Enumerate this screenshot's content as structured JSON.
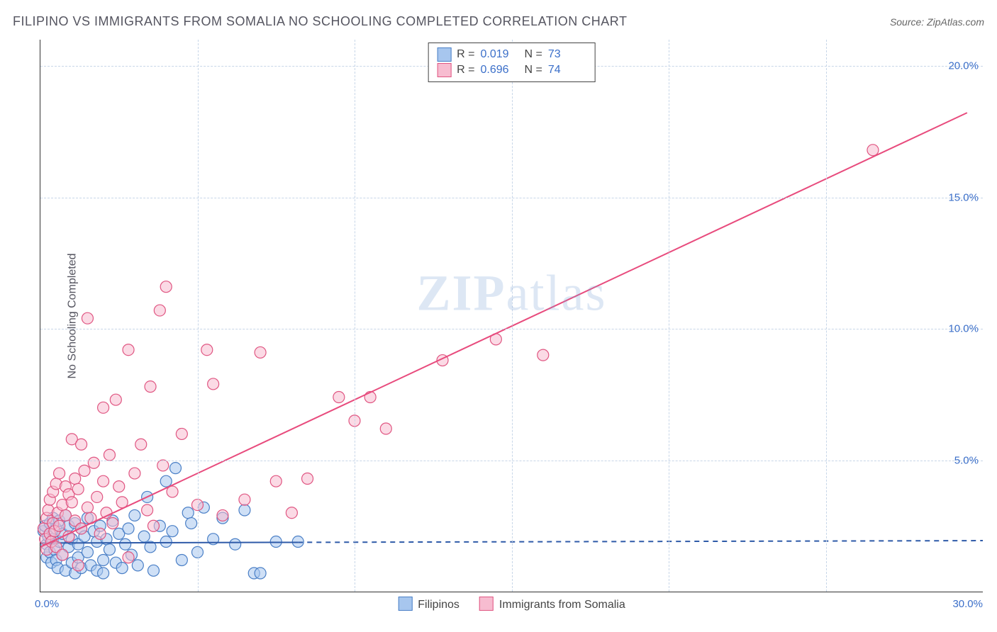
{
  "title": "FILIPINO VS IMMIGRANTS FROM SOMALIA NO SCHOOLING COMPLETED CORRELATION CHART",
  "source_label": "Source:",
  "source_name": "ZipAtlas.com",
  "ylabel": "No Schooling Completed",
  "watermark": {
    "bold": "ZIP",
    "light": "atlas"
  },
  "chart": {
    "type": "scatter",
    "xlim": [
      0,
      30
    ],
    "ylim": [
      0,
      21
    ],
    "xticks": [
      0,
      30
    ],
    "xtick_labels": [
      "0.0%",
      "30.0%"
    ],
    "yticks": [
      5,
      10,
      15,
      20
    ],
    "ytick_labels": [
      "5.0%",
      "10.0%",
      "15.0%",
      "20.0%"
    ],
    "x_minor_step": 5,
    "grid_color": "#c7d6e8",
    "background_color": "#ffffff",
    "axis_color": "#333333",
    "tick_label_color": "#3b6fc9",
    "series": [
      {
        "key": "filipinos",
        "label": "Filipinos",
        "marker_fill": "#a7c6ee",
        "marker_stroke": "#4a7fc6",
        "marker_fill_opacity": 0.55,
        "marker_radius": 8,
        "line_color": "#2e5aa8",
        "line_width": 2,
        "r": 0.019,
        "n": 73,
        "fit": {
          "slope": 0.003,
          "intercept": 1.85,
          "x0": 0,
          "x1": 8.2,
          "extend_dashed_to": 30
        },
        "points": [
          [
            0.1,
            2.3
          ],
          [
            0.15,
            2.5
          ],
          [
            0.2,
            1.8
          ],
          [
            0.2,
            1.3
          ],
          [
            0.25,
            2.1
          ],
          [
            0.3,
            2.6
          ],
          [
            0.3,
            1.5
          ],
          [
            0.35,
            1.1
          ],
          [
            0.4,
            2.0
          ],
          [
            0.4,
            2.8
          ],
          [
            0.45,
            1.6
          ],
          [
            0.5,
            2.4
          ],
          [
            0.5,
            1.2
          ],
          [
            0.55,
            0.9
          ],
          [
            0.6,
            2.7
          ],
          [
            0.6,
            1.9
          ],
          [
            0.7,
            1.4
          ],
          [
            0.7,
            2.2
          ],
          [
            0.8,
            0.8
          ],
          [
            0.8,
            2.9
          ],
          [
            0.9,
            1.7
          ],
          [
            0.9,
            2.5
          ],
          [
            1.0,
            1.1
          ],
          [
            1.0,
            2.0
          ],
          [
            1.1,
            0.7
          ],
          [
            1.1,
            2.6
          ],
          [
            1.2,
            1.8
          ],
          [
            1.2,
            1.3
          ],
          [
            1.3,
            2.4
          ],
          [
            1.3,
            0.9
          ],
          [
            1.4,
            2.1
          ],
          [
            1.5,
            1.5
          ],
          [
            1.5,
            2.8
          ],
          [
            1.6,
            1.0
          ],
          [
            1.7,
            2.3
          ],
          [
            1.8,
            0.8
          ],
          [
            1.8,
            1.9
          ],
          [
            1.9,
            2.5
          ],
          [
            2.0,
            1.2
          ],
          [
            2.0,
            0.7
          ],
          [
            2.1,
            2.0
          ],
          [
            2.2,
            1.6
          ],
          [
            2.3,
            2.7
          ],
          [
            2.4,
            1.1
          ],
          [
            2.5,
            2.2
          ],
          [
            2.6,
            0.9
          ],
          [
            2.7,
            1.8
          ],
          [
            2.8,
            2.4
          ],
          [
            2.9,
            1.4
          ],
          [
            3.0,
            2.9
          ],
          [
            3.1,
            1.0
          ],
          [
            3.3,
            2.1
          ],
          [
            3.4,
            3.6
          ],
          [
            3.5,
            1.7
          ],
          [
            3.6,
            0.8
          ],
          [
            3.8,
            2.5
          ],
          [
            4.0,
            4.2
          ],
          [
            4.0,
            1.9
          ],
          [
            4.2,
            2.3
          ],
          [
            4.3,
            4.7
          ],
          [
            4.5,
            1.2
          ],
          [
            4.7,
            3.0
          ],
          [
            4.8,
            2.6
          ],
          [
            5.0,
            1.5
          ],
          [
            5.2,
            3.2
          ],
          [
            5.5,
            2.0
          ],
          [
            5.8,
            2.8
          ],
          [
            6.2,
            1.8
          ],
          [
            6.5,
            3.1
          ],
          [
            6.8,
            0.7
          ],
          [
            7.0,
            0.7
          ],
          [
            7.5,
            1.9
          ],
          [
            8.2,
            1.9
          ]
        ]
      },
      {
        "key": "somalia",
        "label": "Immigrants from Somalia",
        "marker_fill": "#f7bcd0",
        "marker_stroke": "#e05682",
        "marker_fill_opacity": 0.55,
        "marker_radius": 8,
        "line_color": "#e84b7d",
        "line_width": 2,
        "r": 0.696,
        "n": 74,
        "fit": {
          "slope": 0.56,
          "intercept": 1.7,
          "x0": 0,
          "x1": 29.5,
          "extend_dashed_to": null
        },
        "points": [
          [
            0.1,
            2.4
          ],
          [
            0.15,
            2.0
          ],
          [
            0.2,
            2.8
          ],
          [
            0.2,
            1.6
          ],
          [
            0.25,
            3.1
          ],
          [
            0.3,
            2.2
          ],
          [
            0.3,
            3.5
          ],
          [
            0.35,
            1.9
          ],
          [
            0.4,
            2.6
          ],
          [
            0.4,
            3.8
          ],
          [
            0.45,
            2.3
          ],
          [
            0.5,
            4.1
          ],
          [
            0.5,
            1.7
          ],
          [
            0.55,
            3.0
          ],
          [
            0.6,
            4.5
          ],
          [
            0.6,
            2.5
          ],
          [
            0.7,
            3.3
          ],
          [
            0.7,
            1.4
          ],
          [
            0.8,
            4.0
          ],
          [
            0.8,
            2.9
          ],
          [
            0.9,
            3.7
          ],
          [
            0.9,
            2.1
          ],
          [
            1.0,
            5.8
          ],
          [
            1.0,
            3.4
          ],
          [
            1.1,
            2.7
          ],
          [
            1.1,
            4.3
          ],
          [
            1.2,
            1.0
          ],
          [
            1.2,
            3.9
          ],
          [
            1.3,
            5.6
          ],
          [
            1.3,
            2.4
          ],
          [
            1.4,
            4.6
          ],
          [
            1.5,
            3.2
          ],
          [
            1.5,
            10.4
          ],
          [
            1.6,
            2.8
          ],
          [
            1.7,
            4.9
          ],
          [
            1.8,
            3.6
          ],
          [
            1.9,
            2.2
          ],
          [
            2.0,
            7.0
          ],
          [
            2.0,
            4.2
          ],
          [
            2.1,
            3.0
          ],
          [
            2.2,
            5.2
          ],
          [
            2.3,
            2.6
          ],
          [
            2.4,
            7.3
          ],
          [
            2.5,
            4.0
          ],
          [
            2.6,
            3.4
          ],
          [
            2.8,
            9.2
          ],
          [
            2.8,
            1.3
          ],
          [
            3.0,
            4.5
          ],
          [
            3.2,
            5.6
          ],
          [
            3.4,
            3.1
          ],
          [
            3.5,
            7.8
          ],
          [
            3.6,
            2.5
          ],
          [
            3.8,
            10.7
          ],
          [
            3.9,
            4.8
          ],
          [
            4.0,
            11.6
          ],
          [
            4.2,
            3.8
          ],
          [
            4.5,
            6.0
          ],
          [
            5.0,
            3.3
          ],
          [
            5.3,
            9.2
          ],
          [
            5.5,
            7.9
          ],
          [
            5.8,
            2.9
          ],
          [
            6.5,
            3.5
          ],
          [
            7.0,
            9.1
          ],
          [
            7.5,
            4.2
          ],
          [
            8.0,
            3.0
          ],
          [
            8.5,
            4.3
          ],
          [
            9.5,
            7.4
          ],
          [
            10.0,
            6.5
          ],
          [
            10.5,
            7.4
          ],
          [
            11.0,
            6.2
          ],
          [
            12.8,
            8.8
          ],
          [
            14.5,
            9.6
          ],
          [
            16.0,
            9.0
          ],
          [
            26.5,
            16.8
          ]
        ]
      }
    ]
  },
  "legend_top": {
    "r_label": "R =",
    "n_label": "N ="
  },
  "legend_bottom": {}
}
